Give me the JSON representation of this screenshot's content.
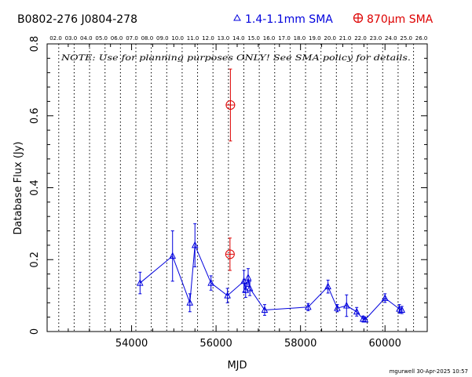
{
  "header": {
    "source_names": "B0802-276   J0804-278",
    "legend_blue_label": "1.4-1.1mm SMA",
    "legend_red_label": "870μm SMA",
    "blue_color": "#0000dd",
    "red_color": "#dd0000"
  },
  "note": "NOTE: Use for planning purposes ONLY!  See SMA policy for details.",
  "footer": "mgurwell 30-Apr-2025 10:57",
  "chart_data": {
    "type": "scatter",
    "xlabel": "MJD",
    "ylabel": "Database Flux (Jy)",
    "xlim": [
      52000,
      61000
    ],
    "ylim": [
      0,
      0.8
    ],
    "x_ticks": [
      54000,
      56000,
      58000,
      60000
    ],
    "y_ticks": [
      0,
      0.2,
      0.4,
      0.6,
      0.8
    ],
    "top_axis_labels": [
      "02.0",
      "03.0",
      "04.0",
      "05.0",
      "06.0",
      "07.0",
      "08.0",
      "09.0",
      "10.0",
      "11.0",
      "12.0",
      "13.0",
      "14.0",
      "15.0",
      "16.0",
      "17.0",
      "18.0",
      "19.0",
      "20.0",
      "21.0",
      "22.0",
      "23.0",
      "24.0",
      "25.0",
      "26.0"
    ],
    "year_boundaries": [
      52275,
      52640,
      53005,
      53371,
      53736,
      54101,
      54466,
      54832,
      55197,
      55562,
      55927,
      56293,
      56658,
      57023,
      57388,
      57754,
      58119,
      58484,
      58849,
      59215,
      59580,
      59945,
      60310,
      60676
    ],
    "series": [
      {
        "name": "1.4-1.1mm SMA",
        "color": "#0000dd",
        "marker": "triangle",
        "connected": true,
        "points": [
          {
            "x": 54200,
            "y": 0.135,
            "err": 0.03
          },
          {
            "x": 54970,
            "y": 0.21,
            "err": 0.07
          },
          {
            "x": 55380,
            "y": 0.08,
            "err": 0.025
          },
          {
            "x": 55500,
            "y": 0.24,
            "err": 0.06
          },
          {
            "x": 55880,
            "y": 0.135,
            "err": 0.02
          },
          {
            "x": 56270,
            "y": 0.1,
            "err": 0.02
          },
          {
            "x": 56660,
            "y": 0.14,
            "err": 0.03
          },
          {
            "x": 56700,
            "y": 0.115,
            "err": 0.02
          },
          {
            "x": 56760,
            "y": 0.15,
            "err": 0.025
          },
          {
            "x": 56800,
            "y": 0.12,
            "err": 0.02
          },
          {
            "x": 57150,
            "y": 0.06,
            "err": 0.015
          },
          {
            "x": 58180,
            "y": 0.068,
            "err": 0.01
          },
          {
            "x": 58650,
            "y": 0.125,
            "err": 0.018
          },
          {
            "x": 58870,
            "y": 0.065,
            "err": 0.01
          },
          {
            "x": 59090,
            "y": 0.072,
            "err": 0.03
          },
          {
            "x": 59330,
            "y": 0.055,
            "err": 0.012
          },
          {
            "x": 59480,
            "y": 0.035,
            "err": 0.008
          },
          {
            "x": 59530,
            "y": 0.033,
            "err": 0.006
          },
          {
            "x": 60000,
            "y": 0.093,
            "err": 0.012
          },
          {
            "x": 60340,
            "y": 0.063,
            "err": 0.012
          },
          {
            "x": 60400,
            "y": 0.06,
            "err": 0.01
          }
        ]
      },
      {
        "name": "870μm SMA",
        "color": "#dd0000",
        "marker": "circle-plus",
        "connected": false,
        "points": [
          {
            "x": 56340,
            "y": 0.63,
            "err": 0.1
          },
          {
            "x": 56330,
            "y": 0.215,
            "err": 0.045
          }
        ]
      }
    ]
  }
}
